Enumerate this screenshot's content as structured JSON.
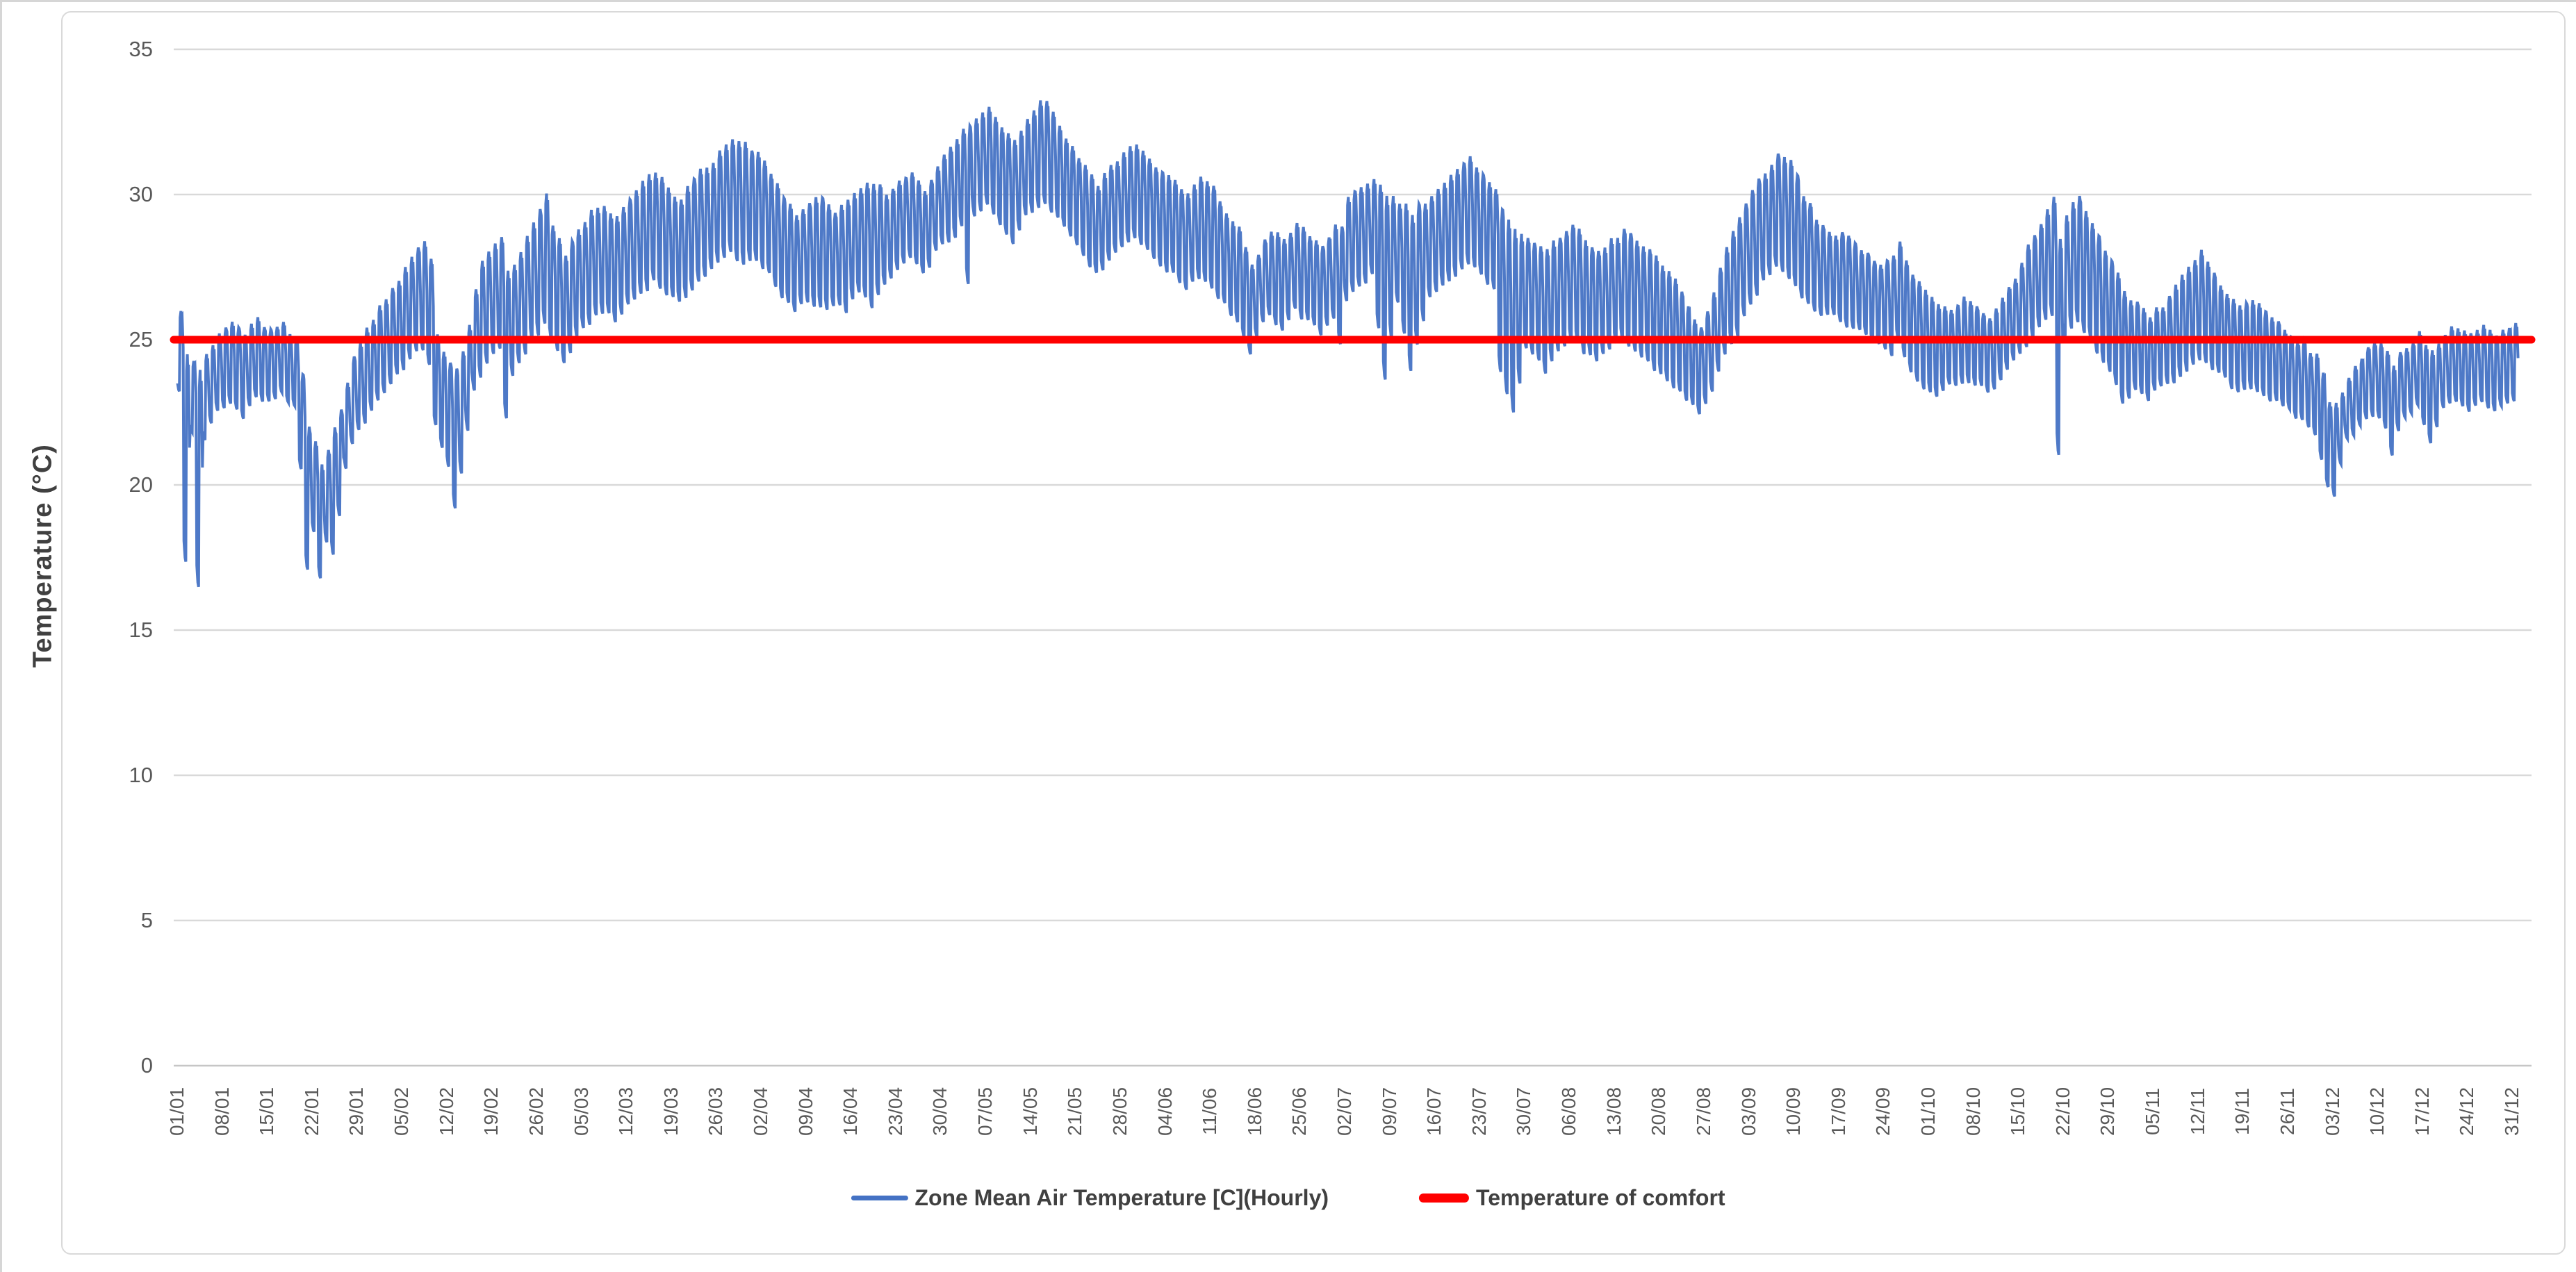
{
  "chart_data": {
    "type": "line",
    "title": "",
    "xlabel": "",
    "ylabel": "Temperature (°C)",
    "ylim": [
      0,
      35
    ],
    "y_ticks": [
      0,
      5,
      10,
      15,
      20,
      25,
      30,
      35
    ],
    "grid": "horizontal",
    "legend_position": "bottom-center",
    "days_total": 365,
    "x_tick_interval_days": 7,
    "x_tick_labels": [
      "01/01",
      "08/01",
      "15/01",
      "22/01",
      "29/01",
      "05/02",
      "12/02",
      "19/02",
      "26/02",
      "05/03",
      "12/03",
      "19/03",
      "26/03",
      "02/04",
      "09/04",
      "16/04",
      "23/04",
      "30/04",
      "07/05",
      "14/05",
      "21/05",
      "28/05",
      "04/06",
      "11/06",
      "18/06",
      "25/06",
      "02/07",
      "09/07",
      "16/07",
      "23/07",
      "30/07",
      "06/08",
      "13/08",
      "20/08",
      "27/08",
      "03/09",
      "10/09",
      "17/09",
      "24/09",
      "01/10",
      "08/10",
      "15/10",
      "22/10",
      "29/10",
      "05/11",
      "12/11",
      "19/11",
      "26/11",
      "03/12",
      "10/12",
      "17/12",
      "24/12",
      "31/12"
    ],
    "colors": {
      "gridline": "#D9D9D9",
      "axis_line": "#C6C6C6",
      "tick_label": "#595959",
      "axis_title": "#404040",
      "legend_text": "#404040",
      "background": "#FFFFFF"
    },
    "series": [
      {
        "name": "Zone Mean Air Temperature [C](Hourly)",
        "color": "#4472C4",
        "kind": "hourly-line",
        "units": "C",
        "daily_envelope_anchors": [
          [
            0,
            23.3,
            26.1
          ],
          [
            1,
            17.3,
            24.6
          ],
          [
            2,
            21.8,
            24.3
          ],
          [
            3,
            16.5,
            24.0
          ],
          [
            4,
            21.6,
            24.4
          ],
          [
            6,
            22.5,
            25.2
          ],
          [
            8,
            22.8,
            25.6
          ],
          [
            10,
            22.4,
            25.2
          ],
          [
            12,
            23.0,
            25.7
          ],
          [
            14,
            22.8,
            25.3
          ],
          [
            16,
            23.2,
            25.5
          ],
          [
            18,
            22.6,
            24.9
          ],
          [
            19,
            20.5,
            23.8
          ],
          [
            20,
            17.0,
            22.0
          ],
          [
            21,
            18.3,
            21.5
          ],
          [
            22,
            16.9,
            20.8
          ],
          [
            23,
            18.0,
            21.3
          ],
          [
            24,
            17.5,
            22.0
          ],
          [
            25,
            19.0,
            22.5
          ],
          [
            26,
            20.5,
            23.5
          ],
          [
            27,
            21.5,
            24.5
          ],
          [
            28,
            21.8,
            24.9
          ],
          [
            30,
            22.6,
            25.8
          ],
          [
            32,
            23.2,
            26.5
          ],
          [
            34,
            23.8,
            27.1
          ],
          [
            36,
            24.3,
            27.8
          ],
          [
            38,
            24.7,
            28.4
          ],
          [
            39,
            24.2,
            27.8
          ],
          [
            40,
            22.0,
            25.2
          ],
          [
            41,
            21.2,
            24.6
          ],
          [
            42,
            20.6,
            24.3
          ],
          [
            43,
            19.3,
            24.0
          ],
          [
            44,
            20.4,
            24.6
          ],
          [
            45,
            21.8,
            25.4
          ],
          [
            46,
            23.2,
            26.8
          ],
          [
            47,
            23.8,
            27.6
          ],
          [
            48,
            24.2,
            28.0
          ],
          [
            50,
            24.6,
            28.5
          ],
          [
            51,
            22.3,
            27.4
          ],
          [
            52,
            23.8,
            27.6
          ],
          [
            54,
            24.6,
            28.6
          ],
          [
            56,
            25.2,
            29.4
          ],
          [
            57,
            25.6,
            30.0
          ],
          [
            58,
            25.0,
            29.0
          ],
          [
            60,
            24.2,
            27.8
          ],
          [
            62,
            25.0,
            28.8
          ],
          [
            64,
            25.6,
            29.4
          ],
          [
            66,
            26.0,
            29.6
          ],
          [
            68,
            25.6,
            29.2
          ],
          [
            70,
            26.2,
            29.8
          ],
          [
            72,
            26.6,
            30.4
          ],
          [
            74,
            27.0,
            30.8
          ],
          [
            76,
            26.6,
            30.2
          ],
          [
            78,
            26.2,
            29.8
          ],
          [
            80,
            26.8,
            30.6
          ],
          [
            82,
            27.2,
            31.0
          ],
          [
            84,
            27.6,
            31.4
          ],
          [
            86,
            28.0,
            31.9
          ],
          [
            88,
            27.6,
            31.7
          ],
          [
            90,
            27.8,
            31.4
          ],
          [
            92,
            27.2,
            30.8
          ],
          [
            94,
            26.4,
            29.9
          ],
          [
            96,
            26.0,
            29.4
          ],
          [
            98,
            26.3,
            29.6
          ],
          [
            100,
            26.1,
            30.0
          ],
          [
            102,
            26.2,
            29.4
          ],
          [
            104,
            26.0,
            29.7
          ],
          [
            106,
            26.6,
            30.2
          ],
          [
            108,
            26.2,
            30.4
          ],
          [
            110,
            26.8,
            30.1
          ],
          [
            112,
            27.4,
            30.4
          ],
          [
            114,
            27.8,
            30.8
          ],
          [
            116,
            27.2,
            30.2
          ],
          [
            118,
            28.0,
            31.0
          ],
          [
            120,
            28.4,
            31.6
          ],
          [
            122,
            28.8,
            32.2
          ],
          [
            123,
            26.9,
            32.4
          ],
          [
            124,
            29.2,
            32.6
          ],
          [
            126,
            29.6,
            33.0
          ],
          [
            128,
            29.0,
            32.4
          ],
          [
            130,
            28.4,
            31.9
          ],
          [
            132,
            29.2,
            32.7
          ],
          [
            134,
            29.6,
            33.2
          ],
          [
            135,
            29.8,
            33.3
          ],
          [
            137,
            29.2,
            32.4
          ],
          [
            139,
            28.6,
            31.6
          ],
          [
            141,
            28.0,
            31.0
          ],
          [
            143,
            27.2,
            30.4
          ],
          [
            145,
            27.8,
            31.0
          ],
          [
            147,
            28.2,
            31.4
          ],
          [
            149,
            28.6,
            31.8
          ],
          [
            151,
            28.0,
            31.2
          ],
          [
            153,
            27.6,
            30.8
          ],
          [
            155,
            27.2,
            30.4
          ],
          [
            157,
            26.8,
            30.0
          ],
          [
            159,
            27.2,
            30.6
          ],
          [
            161,
            26.8,
            30.2
          ],
          [
            163,
            26.2,
            29.4
          ],
          [
            165,
            25.6,
            28.8
          ],
          [
            166,
            25.0,
            28.2
          ],
          [
            167,
            24.4,
            27.6
          ],
          [
            168,
            25.2,
            28.0
          ],
          [
            170,
            25.8,
            28.8
          ],
          [
            172,
            25.4,
            28.4
          ],
          [
            174,
            26.0,
            29.0
          ],
          [
            176,
            25.6,
            28.6
          ],
          [
            178,
            25.2,
            28.2
          ],
          [
            180,
            25.8,
            29.0
          ],
          [
            181,
            24.9,
            28.8
          ],
          [
            182,
            26.4,
            29.8
          ],
          [
            184,
            26.8,
            30.2
          ],
          [
            186,
            27.2,
            30.6
          ],
          [
            188,
            23.6,
            30.0
          ],
          [
            190,
            26.4,
            29.8
          ],
          [
            192,
            23.9,
            29.4
          ],
          [
            195,
            26.4,
            30.0
          ],
          [
            197,
            26.8,
            30.4
          ],
          [
            199,
            27.2,
            30.8
          ],
          [
            201,
            27.6,
            31.2
          ],
          [
            203,
            27.2,
            30.8
          ],
          [
            205,
            26.8,
            30.2
          ],
          [
            206,
            23.8,
            29.4
          ],
          [
            208,
            22.4,
            28.8
          ],
          [
            210,
            24.8,
            28.6
          ],
          [
            212,
            24.4,
            28.2
          ],
          [
            213,
            23.9,
            28.0
          ],
          [
            215,
            24.6,
            28.6
          ],
          [
            217,
            25.0,
            29.0
          ],
          [
            219,
            24.6,
            28.4
          ],
          [
            221,
            24.2,
            28.0
          ],
          [
            223,
            24.6,
            28.4
          ],
          [
            225,
            25.0,
            28.8
          ],
          [
            227,
            24.6,
            28.4
          ],
          [
            229,
            24.2,
            28.0
          ],
          [
            231,
            23.8,
            27.6
          ],
          [
            233,
            23.4,
            27.0
          ],
          [
            235,
            22.9,
            26.2
          ],
          [
            237,
            22.5,
            25.4
          ],
          [
            239,
            23.2,
            26.6
          ],
          [
            241,
            24.4,
            28.2
          ],
          [
            243,
            25.2,
            29.2
          ],
          [
            245,
            26.2,
            30.2
          ],
          [
            247,
            27.0,
            30.8
          ],
          [
            249,
            27.6,
            31.4
          ],
          [
            251,
            27.2,
            31.2
          ],
          [
            253,
            26.5,
            30.0
          ],
          [
            255,
            26.0,
            29.2
          ],
          [
            257,
            25.9,
            28.8
          ],
          [
            259,
            25.6,
            28.6
          ],
          [
            261,
            25.4,
            28.4
          ],
          [
            263,
            25.2,
            28.0
          ],
          [
            265,
            24.8,
            27.6
          ],
          [
            267,
            24.5,
            27.8
          ],
          [
            268,
            25.0,
            28.4
          ],
          [
            270,
            23.9,
            27.2
          ],
          [
            272,
            23.4,
            26.6
          ],
          [
            274,
            23.1,
            26.2
          ],
          [
            276,
            23.4,
            26.0
          ],
          [
            278,
            23.6,
            26.4
          ],
          [
            280,
            23.4,
            26.1
          ],
          [
            282,
            23.2,
            25.8
          ],
          [
            284,
            23.6,
            26.4
          ],
          [
            286,
            24.2,
            27.2
          ],
          [
            288,
            24.8,
            28.2
          ],
          [
            290,
            25.4,
            29.0
          ],
          [
            292,
            25.8,
            29.8
          ],
          [
            293,
            21.1,
            28.4
          ],
          [
            294,
            25.2,
            29.4
          ],
          [
            296,
            25.6,
            29.9
          ],
          [
            298,
            25.0,
            29.0
          ],
          [
            300,
            24.2,
            28.0
          ],
          [
            302,
            23.4,
            27.2
          ],
          [
            303,
            22.8,
            26.6
          ],
          [
            305,
            23.2,
            26.2
          ],
          [
            307,
            23.0,
            25.8
          ],
          [
            309,
            23.3,
            26.2
          ],
          [
            311,
            23.6,
            26.8
          ],
          [
            313,
            24.0,
            27.6
          ],
          [
            315,
            24.2,
            28.0
          ],
          [
            317,
            24.0,
            27.2
          ],
          [
            319,
            23.6,
            26.6
          ],
          [
            321,
            23.2,
            26.2
          ],
          [
            323,
            23.4,
            26.4
          ],
          [
            325,
            23.1,
            26.0
          ],
          [
            327,
            22.8,
            25.6
          ],
          [
            329,
            22.5,
            25.2
          ],
          [
            331,
            22.2,
            24.9
          ],
          [
            333,
            21.8,
            24.4
          ],
          [
            334,
            20.8,
            23.8
          ],
          [
            335,
            19.9,
            22.8
          ],
          [
            336,
            19.7,
            22.9
          ],
          [
            337,
            20.8,
            23.2
          ],
          [
            338,
            21.6,
            23.8
          ],
          [
            340,
            22.0,
            24.4
          ],
          [
            342,
            22.4,
            24.9
          ],
          [
            344,
            22.0,
            24.6
          ],
          [
            345,
            21.1,
            24.2
          ],
          [
            347,
            22.4,
            24.8
          ],
          [
            349,
            22.7,
            25.2
          ],
          [
            351,
            21.4,
            24.6
          ],
          [
            353,
            22.6,
            25.2
          ],
          [
            355,
            22.9,
            25.5
          ],
          [
            357,
            22.6,
            25.2
          ],
          [
            359,
            22.9,
            25.5
          ],
          [
            361,
            22.5,
            25.1
          ],
          [
            363,
            22.8,
            25.4
          ],
          [
            364,
            23.0,
            25.5
          ]
        ]
      },
      {
        "name": "Temperature of comfort",
        "color": "#FF0000",
        "kind": "constant",
        "value": 25
      }
    ]
  }
}
